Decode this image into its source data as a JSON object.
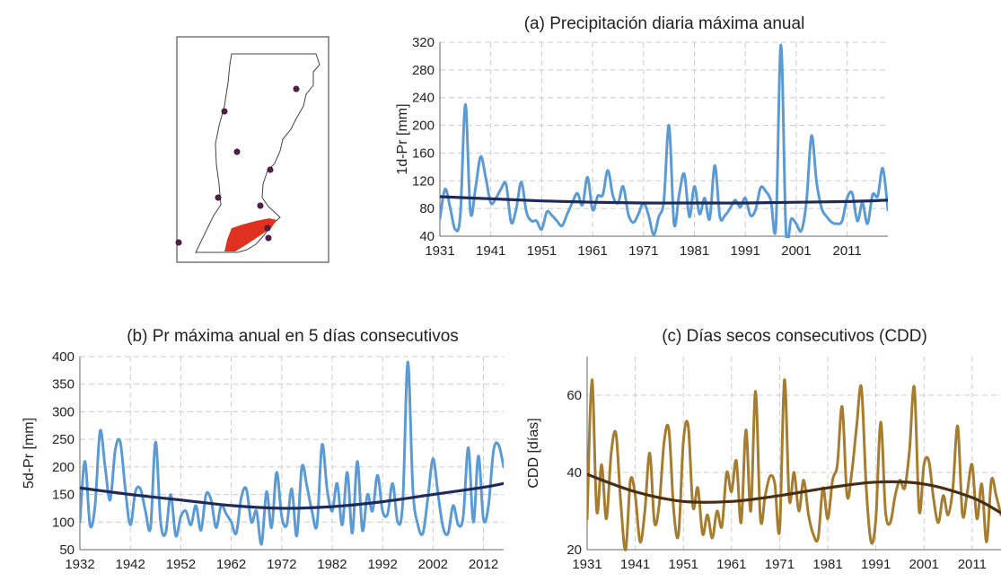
{
  "chart_data": [
    {
      "id": "a",
      "type": "line",
      "title": "(a) Precipitación diaria máxima anual",
      "ylabel": "1d-Pr [mm]",
      "xlabel": "",
      "xlim": [
        1931,
        2019
      ],
      "ylim": [
        40,
        320
      ],
      "xticks": [
        1931,
        1941,
        1951,
        1961,
        1971,
        1981,
        1991,
        2001,
        2011
      ],
      "yticks": [
        40,
        80,
        120,
        160,
        200,
        240,
        280,
        320
      ],
      "grid": true,
      "series": [
        {
          "role": "annual",
          "color": "#5b9bd5",
          "x": [
            1931,
            1932,
            1933,
            1934,
            1935,
            1936,
            1937,
            1938,
            1939,
            1940,
            1941,
            1942,
            1943,
            1944,
            1945,
            1946,
            1947,
            1948,
            1949,
            1950,
            1951,
            1952,
            1953,
            1954,
            1955,
            1956,
            1957,
            1958,
            1959,
            1960,
            1961,
            1962,
            1963,
            1964,
            1965,
            1966,
            1967,
            1968,
            1969,
            1970,
            1971,
            1972,
            1973,
            1974,
            1975,
            1976,
            1977,
            1978,
            1979,
            1980,
            1981,
            1982,
            1983,
            1984,
            1985,
            1986,
            1987,
            1988,
            1989,
            1990,
            1991,
            1992,
            1993,
            1994,
            1995,
            1996,
            1997,
            1998,
            1999,
            2000,
            2001,
            2002,
            2003,
            2004,
            2005,
            2006,
            2007,
            2008,
            2009,
            2010,
            2011,
            2012,
            2013,
            2014,
            2015,
            2016,
            2017,
            2018,
            2019
          ],
          "y": [
            65,
            108,
            82,
            50,
            70,
            230,
            75,
            110,
            155,
            125,
            88,
            95,
            108,
            115,
            60,
            80,
            118,
            75,
            62,
            62,
            50,
            75,
            70,
            62,
            55,
            72,
            88,
            102,
            85,
            125,
            78,
            98,
            100,
            135,
            98,
            88,
            112,
            72,
            60,
            72,
            88,
            70,
            42,
            68,
            92,
            200,
            58,
            100,
            130,
            68,
            112,
            72,
            95,
            65,
            142,
            68,
            70,
            80,
            92,
            82,
            95,
            70,
            78,
            110,
            105,
            92,
            55,
            316,
            44,
            65,
            58,
            48,
            90,
            185,
            118,
            80,
            68,
            60,
            58,
            62,
            95,
            102,
            62,
            88,
            58,
            100,
            98,
            138,
            78
          ]
        },
        {
          "role": "trend",
          "color": "#1f2a5c",
          "x": [
            1931,
            1941,
            1951,
            1961,
            1971,
            1981,
            1991,
            2001,
            2011,
            2019
          ],
          "y": [
            97,
            94,
            91,
            89,
            88,
            88,
            88,
            89,
            90,
            92
          ]
        }
      ]
    },
    {
      "id": "b",
      "type": "line",
      "title": "(b) Pr máxima anual en 5 días consecutivos",
      "ylabel": "5d-Pr [mm]",
      "xlabel": "",
      "xlim": [
        1932,
        2016
      ],
      "ylim": [
        50,
        400
      ],
      "xticks": [
        1932,
        1942,
        1952,
        1962,
        1972,
        1982,
        1992,
        2002,
        2012
      ],
      "yticks": [
        50,
        100,
        150,
        200,
        250,
        300,
        350,
        400
      ],
      "grid": true,
      "series": [
        {
          "role": "annual",
          "color": "#5b9bd5",
          "x": [
            1932,
            1933,
            1934,
            1935,
            1936,
            1937,
            1938,
            1939,
            1940,
            1941,
            1942,
            1943,
            1944,
            1945,
            1946,
            1947,
            1948,
            1949,
            1950,
            1951,
            1952,
            1953,
            1954,
            1955,
            1956,
            1957,
            1958,
            1959,
            1960,
            1961,
            1962,
            1963,
            1964,
            1965,
            1966,
            1967,
            1968,
            1969,
            1970,
            1971,
            1972,
            1973,
            1974,
            1975,
            1976,
            1977,
            1978,
            1979,
            1980,
            1981,
            1982,
            1983,
            1984,
            1985,
            1986,
            1987,
            1988,
            1989,
            1990,
            1991,
            1992,
            1993,
            1994,
            1995,
            1996,
            1997,
            1998,
            1999,
            2000,
            2001,
            2002,
            2003,
            2004,
            2005,
            2006,
            2007,
            2008,
            2009,
            2010,
            2011,
            2012,
            2013,
            2014,
            2015,
            2016
          ],
          "y": [
            100,
            210,
            95,
            130,
            265,
            200,
            140,
            230,
            245,
            160,
            95,
            155,
            160,
            120,
            90,
            245,
            100,
            80,
            150,
            75,
            110,
            120,
            95,
            130,
            85,
            150,
            140,
            90,
            130,
            115,
            100,
            80,
            145,
            160,
            100,
            120,
            60,
            155,
            90,
            190,
            110,
            95,
            160,
            75,
            200,
            165,
            120,
            95,
            240,
            160,
            120,
            170,
            95,
            190,
            80,
            210,
            85,
            150,
            120,
            185,
            120,
            115,
            170,
            100,
            135,
            390,
            160,
            95,
            80,
            145,
            215,
            150,
            90,
            80,
            130,
            95,
            110,
            235,
            100,
            220,
            105,
            130,
            230,
            240,
            200
          ]
        },
        {
          "role": "trend",
          "color": "#1f2a5c",
          "x": [
            1932,
            1942,
            1952,
            1962,
            1972,
            1982,
            1992,
            2002,
            2012,
            2016
          ],
          "y": [
            162,
            150,
            140,
            130,
            125,
            128,
            137,
            150,
            163,
            170
          ]
        }
      ]
    },
    {
      "id": "c",
      "type": "line",
      "title": "(c) Días secos consecutivos (CDD)",
      "ylabel": "CDD [días]",
      "xlabel": "",
      "xlim": [
        1931,
        2017
      ],
      "ylim": [
        20,
        70
      ],
      "xticks": [
        1931,
        1941,
        1951,
        1961,
        1971,
        1981,
        1991,
        2001,
        2011
      ],
      "yticks": [
        20,
        40,
        60
      ],
      "grid": true,
      "series": [
        {
          "role": "annual",
          "color": "#a67c2e",
          "x": [
            1931,
            1932,
            1933,
            1934,
            1935,
            1936,
            1937,
            1938,
            1939,
            1940,
            1941,
            1942,
            1943,
            1944,
            1945,
            1946,
            1947,
            1948,
            1949,
            1950,
            1951,
            1952,
            1953,
            1954,
            1955,
            1956,
            1957,
            1958,
            1959,
            1960,
            1961,
            1962,
            1963,
            1964,
            1965,
            1966,
            1967,
            1968,
            1969,
            1970,
            1971,
            1972,
            1973,
            1974,
            1975,
            1976,
            1977,
            1978,
            1979,
            1980,
            1981,
            1982,
            1983,
            1984,
            1985,
            1986,
            1987,
            1988,
            1989,
            1990,
            1991,
            1992,
            1993,
            1994,
            1995,
            1996,
            1997,
            1998,
            1999,
            2000,
            2001,
            2002,
            2003,
            2004,
            2005,
            2006,
            2007,
            2008,
            2009,
            2010,
            2011,
            2012,
            2013,
            2014,
            2015,
            2016,
            2017
          ],
          "y": [
            28,
            64,
            30,
            42,
            28,
            45,
            50,
            32,
            20,
            38,
            34,
            22,
            30,
            45,
            27,
            32,
            48,
            51,
            30,
            24,
            48,
            52,
            31,
            36,
            24,
            29,
            23,
            30,
            26,
            40,
            35,
            43,
            27,
            51,
            30,
            61,
            28,
            34,
            39,
            37,
            25,
            64,
            33,
            40,
            30,
            38,
            29,
            24,
            23,
            36,
            28,
            38,
            42,
            57,
            34,
            40,
            52,
            62,
            36,
            22,
            28,
            53,
            30,
            27,
            34,
            38,
            36,
            46,
            62,
            30,
            42,
            43,
            33,
            27,
            34,
            29,
            36,
            52,
            29,
            35,
            42,
            28,
            37,
            22,
            38,
            34,
            29
          ]
        },
        {
          "role": "trend",
          "color": "#4a2e12",
          "x": [
            1931,
            1941,
            1951,
            1961,
            1971,
            1981,
            1991,
            2001,
            2011,
            2017
          ],
          "y": [
            39.5,
            35,
            32.5,
            32.5,
            34,
            36,
            37.5,
            37,
            33.5,
            29.5
          ]
        }
      ]
    }
  ],
  "map": {
    "fill_color": "#e03020",
    "station_color": "#5a1a50"
  }
}
